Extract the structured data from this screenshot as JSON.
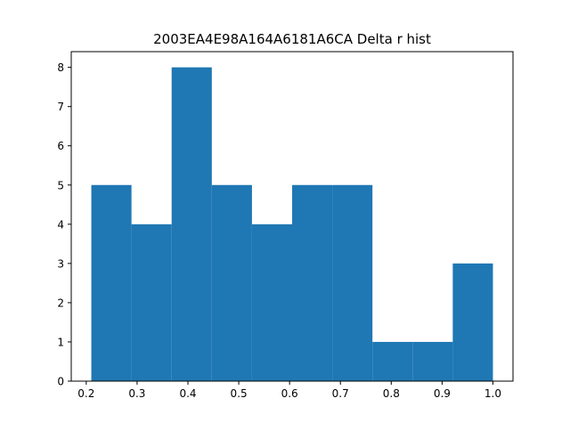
{
  "chart_data": {
    "type": "bar",
    "title": "2003EA4E98A164A6181A6CA Delta r hist",
    "xlabel": "",
    "ylabel": "",
    "bin_edges": [
      0.21,
      0.289,
      0.368,
      0.447,
      0.526,
      0.605,
      0.684,
      0.763,
      0.842,
      0.921,
      1.0
    ],
    "values": [
      5,
      4,
      8,
      5,
      4,
      5,
      5,
      1,
      1,
      3
    ],
    "xlim": [
      0.1705,
      1.0395
    ],
    "ylim": [
      0,
      8.4
    ],
    "x_ticks": [
      "0.2",
      "0.3",
      "0.4",
      "0.5",
      "0.6",
      "0.7",
      "0.8",
      "0.9",
      "1.0"
    ],
    "x_tick_values": [
      0.2,
      0.3,
      0.4,
      0.5,
      0.6,
      0.7,
      0.8,
      0.9,
      1.0
    ],
    "y_ticks": [
      "0",
      "1",
      "2",
      "3",
      "4",
      "5",
      "6",
      "7",
      "8"
    ],
    "y_tick_values": [
      0,
      1,
      2,
      3,
      4,
      5,
      6,
      7,
      8
    ],
    "bar_color": "#1f77b4",
    "grid": false,
    "legend": false
  }
}
